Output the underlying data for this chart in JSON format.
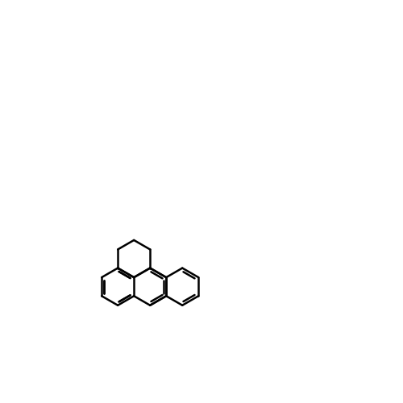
{
  "bg_color": "#ffffff",
  "bond_color": "#000000",
  "red_color": "#ff0000",
  "blue_color": "#0000ff",
  "green_color": "#66cc00",
  "title": "",
  "figsize": [
    5.0,
    5.0
  ],
  "dpi": 100
}
